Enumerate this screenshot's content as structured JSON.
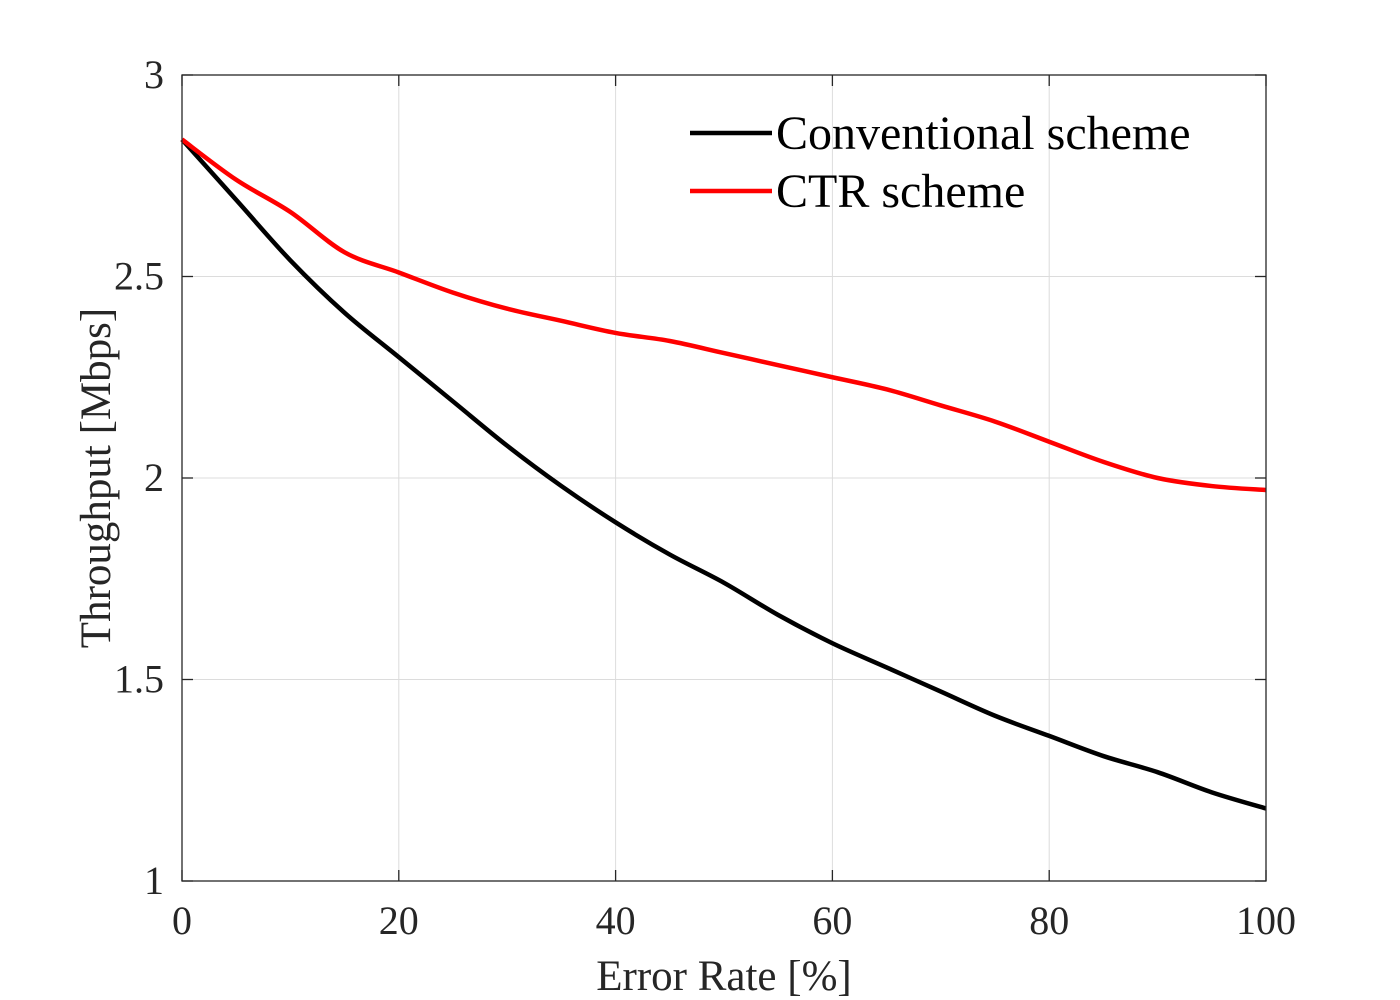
{
  "chart_data": {
    "type": "line",
    "xlabel": "Error Rate [%]",
    "ylabel": "Throughput [Mbps]",
    "xlim": [
      0,
      100
    ],
    "ylim": [
      1,
      3
    ],
    "x_ticks": [
      "0",
      "20",
      "40",
      "60",
      "80",
      "100"
    ],
    "y_ticks": [
      "1",
      "1.5",
      "2",
      "2.5",
      "3"
    ],
    "grid": true,
    "legend_position": "top-right",
    "series": [
      {
        "name": "Conventional scheme",
        "color": "#000000",
        "x": [
          0,
          5,
          10,
          15,
          20,
          25,
          30,
          35,
          40,
          45,
          50,
          55,
          60,
          65,
          70,
          75,
          80,
          85,
          90,
          95,
          100
        ],
        "y": [
          2.84,
          2.69,
          2.54,
          2.41,
          2.3,
          2.19,
          2.08,
          1.98,
          1.89,
          1.81,
          1.74,
          1.66,
          1.59,
          1.53,
          1.47,
          1.41,
          1.36,
          1.31,
          1.27,
          1.22,
          1.18
        ]
      },
      {
        "name": "CTR scheme",
        "color": "#ff0000",
        "x": [
          0,
          5,
          10,
          15,
          20,
          25,
          30,
          35,
          40,
          45,
          50,
          55,
          60,
          65,
          70,
          75,
          80,
          85,
          90,
          95,
          100
        ],
        "y": [
          2.84,
          2.74,
          2.66,
          2.56,
          2.51,
          2.46,
          2.42,
          2.39,
          2.36,
          2.34,
          2.31,
          2.28,
          2.25,
          2.22,
          2.18,
          2.14,
          2.09,
          2.04,
          2.0,
          1.98,
          1.97
        ]
      }
    ]
  }
}
